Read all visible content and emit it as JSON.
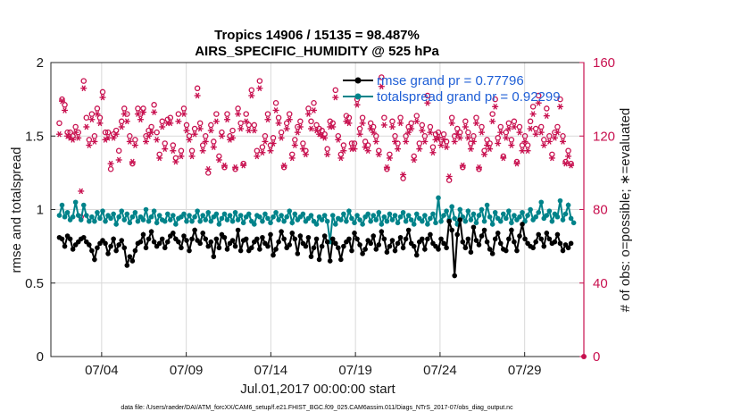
{
  "chart_data": {
    "type": "line",
    "title": "Tropics 14906 / 15135 = 98.487%",
    "subtitle": "AIRS_SPECIFIC_HUMIDITY @ 525 hPa",
    "xlabel": "Jul.01,2017 00:00:00 start",
    "ylabel_left": "rmse and totalspread",
    "ylabel_right": "# of obs: o=possible; ∗=evaluated",
    "footnote": "data file: /Users/raeder/DAI/ATM_forcXX/CAM6_setup/f.e21.FHIST_BGC.f09_025.CAM6assim.011/Diags_NTrS_2017-07/obs_diag_output.nc",
    "xlim": [
      1,
      32.5
    ],
    "ylim_left": [
      0,
      2
    ],
    "ylim_right": [
      0,
      160
    ],
    "x_ticks": [
      {
        "value": 4,
        "label": "07/04"
      },
      {
        "value": 9,
        "label": "07/09"
      },
      {
        "value": 14,
        "label": "07/14"
      },
      {
        "value": 19,
        "label": "07/19"
      },
      {
        "value": 24,
        "label": "07/24"
      },
      {
        "value": 29,
        "label": "07/29"
      }
    ],
    "y_ticks_left": [
      "0",
      "0.5",
      "1",
      "1.5",
      "2"
    ],
    "y_ticks_right": [
      "0",
      "40",
      "80",
      "120",
      "160"
    ],
    "grid": true,
    "legend_position": "top-right",
    "colors": {
      "rmse": "#000000",
      "spread": "#00838a",
      "obs": "#c8104f",
      "legend_text": "#1f5fd6",
      "grid": "#d9d9d9"
    },
    "series": [
      {
        "name": "rmse grand pr = 0.77796",
        "axis": "left",
        "values": [
          0.81,
          0.8,
          0.75,
          0.82,
          0.8,
          0.73,
          0.76,
          0.78,
          0.8,
          0.81,
          0.78,
          0.76,
          0.72,
          0.66,
          0.74,
          0.77,
          0.79,
          0.77,
          0.7,
          0.75,
          0.8,
          0.72,
          0.76,
          0.79,
          0.74,
          0.62,
          0.68,
          0.65,
          0.72,
          0.77,
          0.78,
          0.83,
          0.74,
          0.8,
          0.85,
          0.78,
          0.75,
          0.77,
          0.8,
          0.74,
          0.78,
          0.82,
          0.84,
          0.8,
          0.78,
          0.74,
          0.82,
          0.79,
          0.72,
          0.8,
          0.86,
          0.79,
          0.77,
          0.84,
          0.8,
          0.75,
          0.78,
          0.68,
          0.8,
          0.74,
          0.83,
          0.81,
          0.73,
          0.77,
          0.79,
          0.75,
          0.86,
          0.72,
          0.79,
          0.8,
          0.72,
          0.74,
          0.78,
          0.8,
          0.73,
          0.81,
          0.77,
          0.75,
          0.83,
          0.69,
          0.73,
          0.78,
          0.85,
          0.8,
          0.74,
          0.76,
          0.84,
          0.8,
          0.7,
          0.82,
          0.77,
          0.75,
          0.81,
          0.68,
          0.74,
          0.8,
          0.66,
          0.75,
          0.82,
          0.78,
          0.65,
          0.8,
          0.77,
          0.74,
          0.66,
          0.75,
          0.78,
          0.8,
          0.72,
          0.84,
          0.8,
          0.76,
          0.7,
          0.73,
          0.79,
          0.77,
          0.82,
          0.73,
          0.76,
          0.85,
          0.8,
          0.71,
          0.75,
          0.79,
          0.72,
          0.77,
          0.81,
          0.74,
          0.8,
          0.86,
          0.77,
          0.75,
          0.69,
          0.78,
          0.8,
          0.73,
          0.8,
          0.83,
          0.77,
          0.75,
          0.73,
          0.8,
          0.77,
          0.74,
          0.92,
          0.86,
          0.55,
          0.83,
          0.93,
          0.78,
          0.74,
          0.8,
          0.71,
          0.88,
          0.79,
          0.76,
          0.82,
          0.86,
          0.78,
          0.73,
          0.7,
          0.8,
          0.84,
          0.77,
          0.73,
          0.72,
          0.8,
          0.86,
          0.78,
          0.72,
          0.82,
          0.9,
          0.8,
          0.77,
          0.75,
          0.74,
          0.78,
          0.83,
          0.8,
          0.75,
          0.84,
          0.8,
          0.77,
          0.78,
          0.83,
          0.77,
          0.72,
          0.76,
          0.74,
          0.77
        ]
      },
      {
        "name": "totalspread grand pr = 0.92299",
        "axis": "left",
        "values": [
          0.96,
          1.03,
          0.95,
          0.98,
          0.93,
          0.95,
          1.05,
          0.96,
          0.93,
          1.03,
          0.96,
          0.92,
          0.95,
          0.92,
          0.98,
          0.94,
          0.99,
          0.92,
          0.96,
          0.94,
          0.97,
          0.9,
          0.95,
          0.99,
          0.93,
          0.97,
          0.91,
          0.95,
          0.98,
          0.92,
          0.95,
          0.93,
          1.0,
          0.92,
          0.95,
          0.99,
          0.91,
          0.96,
          0.93,
          0.92,
          0.97,
          0.93,
          0.96,
          0.9,
          0.94,
          0.95,
          0.97,
          0.92,
          0.96,
          0.92,
          0.95,
          0.99,
          0.92,
          0.96,
          0.93,
          0.98,
          0.92,
          0.95,
          0.97,
          0.9,
          0.94,
          0.97,
          0.93,
          0.96,
          0.92,
          0.98,
          0.93,
          0.96,
          0.91,
          0.95,
          0.97,
          0.92,
          0.9,
          0.96,
          0.95,
          0.92,
          0.97,
          0.94,
          0.91,
          0.95,
          0.98,
          0.93,
          0.96,
          0.92,
          0.95,
          0.99,
          0.91,
          0.97,
          0.93,
          0.95,
          0.97,
          0.92,
          0.94,
          0.96,
          0.92,
          0.9,
          0.95,
          0.93,
          0.96,
          0.92,
          0.78,
          0.96,
          0.9,
          0.94,
          0.93,
          0.97,
          0.92,
          0.99,
          0.94,
          0.91,
          0.96,
          0.93,
          0.9,
          0.95,
          0.97,
          0.92,
          0.96,
          0.93,
          0.98,
          0.9,
          0.95,
          0.92,
          0.97,
          0.93,
          0.96,
          0.91,
          0.95,
          0.98,
          0.92,
          0.96,
          0.93,
          0.9,
          0.97,
          0.94,
          0.92,
          0.96,
          0.9,
          0.94,
          0.97,
          0.91,
          1.08,
          0.92,
          0.96,
          0.99,
          0.93,
          1.02,
          0.94,
          0.9,
          1.0,
          0.95,
          0.92,
          0.99,
          0.93,
          0.97,
          0.91,
          0.96,
          1.0,
          0.92,
          1.03,
          0.95,
          0.9,
          0.98,
          0.94,
          0.92,
          0.97,
          0.94,
          0.99,
          0.91,
          0.96,
          0.93,
          0.95,
          0.98,
          0.92,
          0.96,
          1.0,
          0.93,
          0.95,
          0.98,
          1.05,
          0.94,
          0.96,
          0.99,
          0.92,
          0.97,
          0.95,
          1.06,
          0.93,
          0.97,
          1.03,
          0.94,
          0.91
        ]
      },
      {
        "name": "obs possible",
        "axis": "right",
        "marker": "o",
        "values": [
          127,
          140,
          137,
          122,
          122,
          120,
          125,
          122,
          76,
          150,
          130,
          118,
          132,
          120,
          135,
          130,
          144,
          122,
          122,
          102,
          121,
          123,
          112,
          128,
          135,
          132,
          120,
          105,
          118,
          135,
          132,
          135,
          120,
          123,
          125,
          137,
          122,
          110,
          128,
          116,
          129,
          130,
          115,
          108,
          132,
          112,
          135,
          126,
          120,
          112,
          124,
          146,
          127,
          115,
          120,
          100,
          126,
          117,
          132,
          109,
          122,
          103,
          132,
          120,
          123,
          102,
          135,
          127,
          105,
          132,
          126,
          145,
          126,
          112,
          150,
          114,
          120,
          132,
          115,
          119,
          138,
          130,
          122,
          103,
          127,
          132,
          110,
          118,
          125,
          128,
          116,
          112,
          135,
          128,
          138,
          126,
          124,
          123,
          121,
          113,
          128,
          127,
          145,
          120,
          110,
          115,
          131,
          130,
          116,
          116,
          140,
          124,
          130,
          117,
          115,
          127,
          125,
          120,
          112,
          152,
          130,
          102,
          110,
          128,
          120,
          116,
          130,
          97,
          120,
          125,
          127,
          109,
          131,
          116,
          126,
          120,
          142,
          125,
          114,
          121,
          122,
          118,
          121,
          117,
          96,
          130,
          120,
          124,
          122,
          103,
          128,
          122,
          116,
          120,
          130,
          102,
          125,
          112,
          118,
          116,
          132,
          140,
          119,
          125,
          109,
          122,
          127,
          118,
          128,
          106,
          125,
          115,
          120,
          115,
          128,
          136,
          124,
          142,
          125,
          118,
          135,
          120,
          110,
          122,
          125,
          140,
          120,
          106,
          112,
          105
        ]
      },
      {
        "name": "obs evaluated",
        "axis": "right",
        "marker": "*",
        "values": [
          121,
          139,
          134,
          120,
          119,
          118,
          122,
          119,
          90,
          146,
          125,
          115,
          129,
          117,
          132,
          127,
          141,
          118,
          119,
          105,
          119,
          121,
          107,
          125,
          132,
          128,
          117,
          106,
          115,
          132,
          129,
          133,
          117,
          120,
          122,
          133,
          118,
          108,
          125,
          113,
          127,
          127,
          112,
          106,
          128,
          109,
          132,
          123,
          118,
          109,
          121,
          142,
          124,
          112,
          117,
          102,
          123,
          114,
          128,
          107,
          120,
          104,
          129,
          118,
          119,
          103,
          132,
          124,
          104,
          128,
          123,
          142,
          123,
          109,
          146,
          111,
          117,
          129,
          112,
          116,
          134,
          127,
          119,
          104,
          124,
          129,
          108,
          115,
          122,
          125,
          113,
          110,
          132,
          124,
          134,
          123,
          121,
          120,
          119,
          110,
          125,
          125,
          141,
          118,
          108,
          112,
          128,
          127,
          113,
          113,
          137,
          121,
          127,
          114,
          112,
          124,
          122,
          117,
          110,
          147,
          126,
          103,
          108,
          125,
          117,
          113,
          127,
          99,
          117,
          122,
          124,
          107,
          128,
          113,
          123,
          117,
          138,
          122,
          111,
          118,
          119,
          115,
          118,
          114,
          98,
          127,
          117,
          121,
          119,
          104,
          125,
          119,
          113,
          117,
          127,
          103,
          122,
          110,
          115,
          113,
          128,
          136,
          116,
          122,
          108,
          119,
          124,
          115,
          125,
          105,
          122,
          112,
          117,
          112,
          124,
          132,
          121,
          138,
          122,
          115,
          131,
          117,
          108,
          119,
          122,
          136,
          117,
          105,
          109,
          104
        ]
      }
    ],
    "legend": [
      {
        "series": "rmse",
        "label": "rmse grand pr = 0.77796"
      },
      {
        "series": "spread",
        "label": "totalspread grand pr = 0.92299"
      }
    ]
  }
}
